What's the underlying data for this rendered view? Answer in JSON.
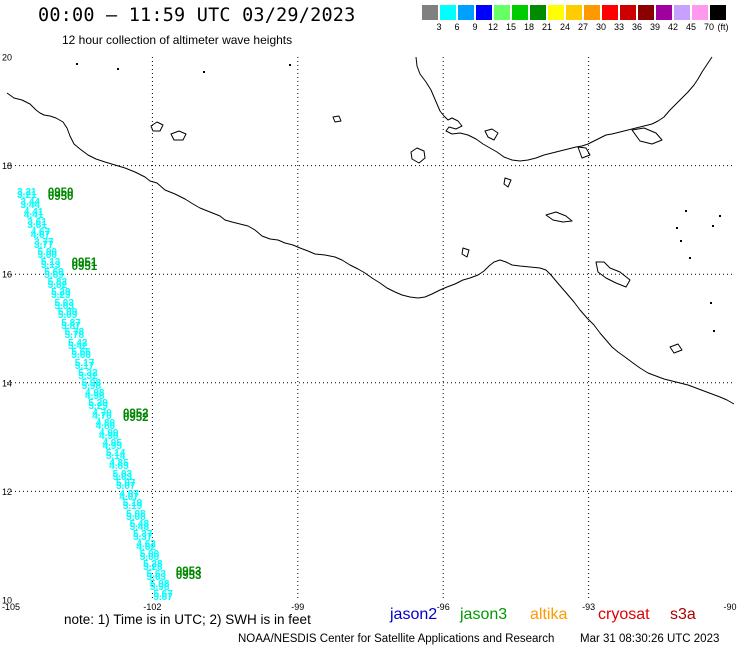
{
  "header": {
    "title": "00:00 – 11:59 UTC 03/29/2023",
    "subtitle": "12 hour collection of altimeter wave heights"
  },
  "scale": {
    "colors": [
      "#808080",
      "#00ffff",
      "#00a0ff",
      "#0000ff",
      "#66ff66",
      "#00cc00",
      "#008c00",
      "#ffff00",
      "#ffcc00",
      "#ff9900",
      "#ff0000",
      "#cc0000",
      "#8b0000",
      "#a000a0",
      "#c8a0ff",
      "#ff99ee",
      "#000000"
    ],
    "labels": [
      "3",
      "6",
      "9",
      "12",
      "15",
      "18",
      "21",
      "24",
      "27",
      "30",
      "33",
      "36",
      "39",
      "42",
      "45",
      "70"
    ],
    "unit": "(ft)"
  },
  "map_data": {
    "type": "map",
    "lon_range": [
      -105,
      -90
    ],
    "lat_range": [
      10,
      20
    ],
    "lon_ticks": [
      -105,
      -102,
      -99,
      -96,
      -93,
      -90
    ],
    "lon_tick_labels": [
      "-105",
      "-102",
      "-99",
      "-96",
      "-93",
      "-90"
    ],
    "lat_ticks": [
      20,
      18,
      16,
      14,
      12,
      10
    ],
    "lat_tick_labels": [
      "20",
      "18",
      "16",
      "14",
      "12",
      "10"
    ],
    "grid": true,
    "track": {
      "time_label_color": "#008800",
      "lat": [
        17.5,
        17.31,
        17.13,
        16.94,
        16.76,
        16.57,
        16.39,
        16.2,
        16.02,
        15.83,
        15.65,
        15.46,
        15.28,
        15.09,
        14.91,
        14.72,
        14.54,
        14.35,
        14.17,
        13.98,
        13.79,
        13.61,
        13.42,
        13.24,
        13.05,
        12.87,
        12.68,
        12.5,
        12.31,
        12.13,
        11.94,
        11.76,
        11.57,
        11.39,
        11.2,
        11.02,
        10.83,
        10.65,
        10.46,
        10.28,
        10.09
      ],
      "lon": [
        -104.59,
        -104.52,
        -104.45,
        -104.38,
        -104.31,
        -104.24,
        -104.17,
        -104.1,
        -104.03,
        -103.96,
        -103.89,
        -103.82,
        -103.75,
        -103.68,
        -103.61,
        -103.54,
        -103.47,
        -103.4,
        -103.33,
        -103.26,
        -103.19,
        -103.12,
        -103.04,
        -102.97,
        -102.9,
        -102.83,
        -102.76,
        -102.69,
        -102.62,
        -102.55,
        -102.48,
        -102.41,
        -102.34,
        -102.27,
        -102.2,
        -102.13,
        -102.06,
        -101.99,
        -101.92,
        -101.85,
        -101.78
      ],
      "swh_ft": [
        3.21,
        3.44,
        4.41,
        3.61,
        4.67,
        3.77,
        5.0,
        5.13,
        5.69,
        5.82,
        5.29,
        5.03,
        5.09,
        5.87,
        5.78,
        5.42,
        5.66,
        5.17,
        5.32,
        5.98,
        4.98,
        5.29,
        4.7,
        4.8,
        4.9,
        4.95,
        5.14,
        4.85,
        5.03,
        5.07,
        4.07,
        5.19,
        5.08,
        5.48,
        5.37,
        4.62,
        5.0,
        5.28,
        5.63,
        5.98,
        5.67
      ],
      "time_labels": [
        {
          "text": "0950",
          "lat": 17.5,
          "lon": -104.59
        },
        {
          "text": "0951",
          "lat": 16.2,
          "lon": -104.1
        },
        {
          "text": "0952",
          "lat": 13.42,
          "lon": -103.04
        },
        {
          "text": "0953",
          "lat": 10.52,
          "lon": -101.95
        }
      ]
    }
  },
  "legend": {
    "note": "note: 1) Time is in UTC; 2) SWH is in feet",
    "satellites": [
      {
        "name": "jason2",
        "color": "#0000cc"
      },
      {
        "name": "jason3",
        "color": "#009900"
      },
      {
        "name": "altika",
        "color": "#ff9900"
      },
      {
        "name": "cryosat",
        "color": "#dd0000"
      },
      {
        "name": "s3a",
        "color": "#aa0000"
      }
    ]
  },
  "footer": {
    "credit": "NOAA/NESDIS Center for Satellite Applications and Research",
    "timestamp": "Mar 31 08:30:26 UTC 2023"
  }
}
